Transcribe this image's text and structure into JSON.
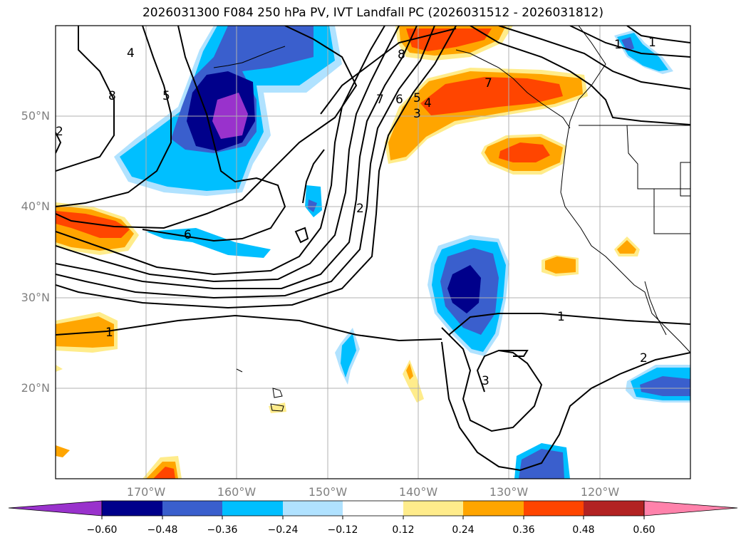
{
  "title": "2026031300 F084 250 hPa PV, IVT Landfall PC (2026031512 - 2026031812)",
  "lat_labels": [
    "50°N",
    "40°N",
    "30°N",
    "20°N"
  ],
  "lon_labels": [
    "170°W",
    "160°W",
    "150°W",
    "140°W",
    "130°W",
    "120°W"
  ],
  "colorbar": {
    "ticks": [
      "−0.60",
      "−0.48",
      "−0.36",
      "−0.24",
      "−0.12",
      "0.12",
      "0.24",
      "0.36",
      "0.48",
      "0.60"
    ],
    "colors": [
      "#9932cc",
      "#00008b",
      "#3a5fcd",
      "#00bfff",
      "#b0e2ff",
      "#ffffff",
      "#ffec8b",
      "#ffa500",
      "#ff4500",
      "#b22222",
      "#ff82ab"
    ]
  },
  "contour_labels": [
    "1",
    "2",
    "3",
    "4",
    "5",
    "6",
    "7",
    "8",
    "2",
    "1",
    "2",
    "3",
    "6",
    "1",
    "4",
    "5",
    "8",
    "7",
    "1"
  ]
}
